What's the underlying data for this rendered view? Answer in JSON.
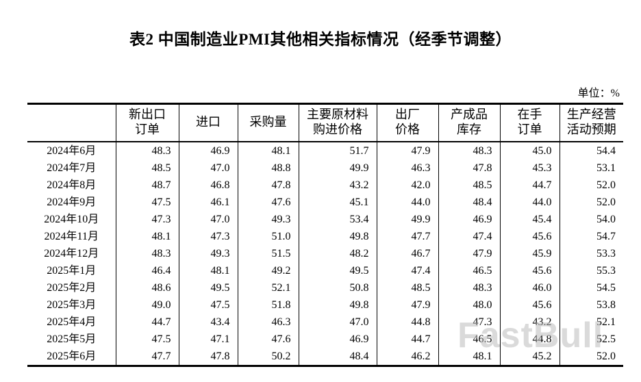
{
  "page": {
    "title": "表2 中国制造业PMI其他相关指标情况（经季节调整）",
    "unit_label": "单位：%",
    "watermark": "FastBull",
    "colors": {
      "text": "#000000",
      "border": "#000000",
      "watermark": "#bcbcbc",
      "background": "#ffffff"
    }
  },
  "table": {
    "columns": [
      "",
      "新出口\n订单",
      "进口",
      "采购量",
      "主要原材料\n购进价格",
      "出厂\n价格",
      "产成品\n库存",
      "在手\n订单",
      "生产经营\n活动预期"
    ],
    "rows": [
      {
        "month": "2024年6月",
        "values": [
          "48.3",
          "46.9",
          "48.1",
          "51.7",
          "47.9",
          "48.3",
          "45.0",
          "54.4"
        ]
      },
      {
        "month": "2024年7月",
        "values": [
          "48.5",
          "47.0",
          "48.8",
          "49.9",
          "46.3",
          "47.8",
          "45.3",
          "53.1"
        ]
      },
      {
        "month": "2024年8月",
        "values": [
          "48.7",
          "46.8",
          "47.8",
          "43.2",
          "42.0",
          "48.5",
          "44.7",
          "52.0"
        ]
      },
      {
        "month": "2024年9月",
        "values": [
          "47.5",
          "46.1",
          "47.6",
          "45.1",
          "44.0",
          "48.4",
          "44.0",
          "52.0"
        ]
      },
      {
        "month": "2024年10月",
        "values": [
          "47.3",
          "47.0",
          "49.3",
          "53.4",
          "49.9",
          "46.9",
          "45.4",
          "54.0"
        ]
      },
      {
        "month": "2024年11月",
        "values": [
          "48.1",
          "47.3",
          "51.0",
          "49.8",
          "47.7",
          "47.4",
          "45.6",
          "54.7"
        ]
      },
      {
        "month": "2024年12月",
        "values": [
          "48.3",
          "49.3",
          "51.5",
          "48.2",
          "46.7",
          "47.9",
          "45.9",
          "53.3"
        ]
      },
      {
        "month": "2025年1月",
        "values": [
          "46.4",
          "48.1",
          "49.2",
          "49.5",
          "47.4",
          "46.5",
          "45.6",
          "55.3"
        ]
      },
      {
        "month": "2025年2月",
        "values": [
          "48.6",
          "49.5",
          "52.1",
          "50.8",
          "48.5",
          "48.3",
          "46.0",
          "54.5"
        ]
      },
      {
        "month": "2025年3月",
        "values": [
          "49.0",
          "47.5",
          "51.8",
          "49.8",
          "47.9",
          "48.0",
          "45.6",
          "53.8"
        ]
      },
      {
        "month": "2025年4月",
        "values": [
          "44.7",
          "43.4",
          "46.3",
          "47.0",
          "44.8",
          "47.3",
          "43.2",
          "52.1"
        ]
      },
      {
        "month": "2025年5月",
        "values": [
          "47.5",
          "47.1",
          "47.6",
          "46.9",
          "44.7",
          "46.5",
          "44.8",
          "52.5"
        ]
      },
      {
        "month": "2025年6月",
        "values": [
          "47.7",
          "47.8",
          "50.2",
          "48.4",
          "46.2",
          "48.1",
          "45.2",
          "52.0"
        ]
      }
    ]
  }
}
